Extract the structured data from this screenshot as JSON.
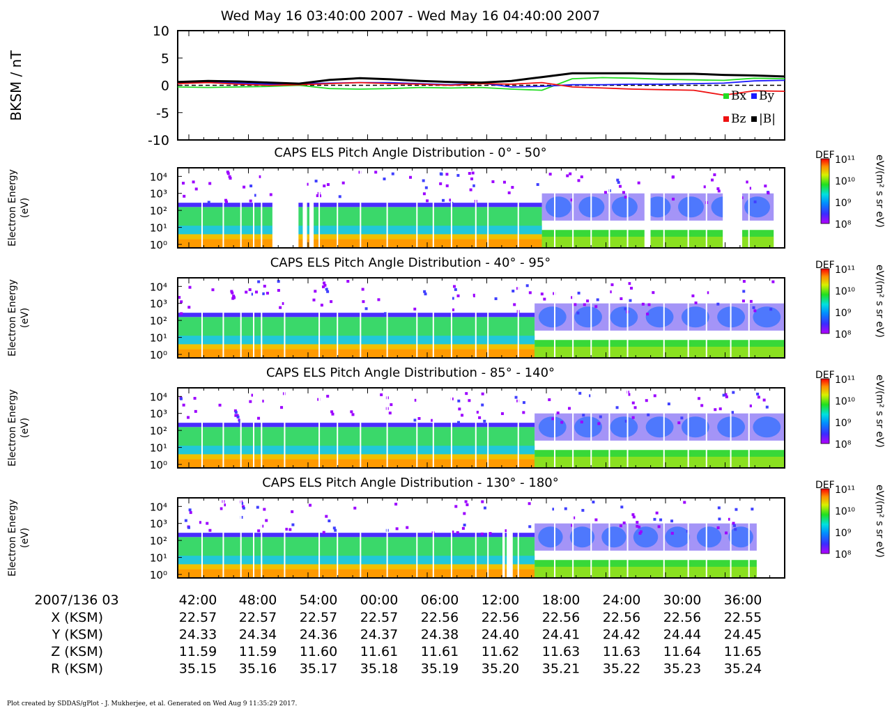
{
  "title": "Wed May 16 03:40:00 2007 - Wed May 16 04:40:00 2007",
  "footer": "Plot created by SDDAS/gPlot - J. Mukherjee, et al.  Generated on Wed Aug 9 11:35:29 2017.",
  "colors": {
    "bx": "#22dd22",
    "by": "#1a1aff",
    "bz": "#ee1111",
    "btot": "#000000"
  },
  "chart_data": [
    {
      "type": "line",
      "ylabel": "BKSM / nT",
      "ylim": [
        -10,
        10
      ],
      "yticks": [
        "10",
        "5",
        "0",
        "-5",
        "-10"
      ],
      "x_unit": "minutes after 03:40",
      "x": [
        0,
        3,
        6,
        9,
        12,
        15,
        18,
        21,
        24,
        27,
        30,
        33,
        36,
        39,
        42,
        45,
        48,
        51,
        54,
        57,
        60
      ],
      "legend": [
        "Bx",
        "By",
        "Bz",
        "|B|"
      ],
      "series": [
        {
          "name": "Bx",
          "color": "#22dd22",
          "values": [
            -0.3,
            -0.4,
            -0.3,
            -0.2,
            0.0,
            -0.6,
            -0.7,
            -0.6,
            -0.4,
            -0.5,
            -0.4,
            -0.7,
            -0.9,
            1.2,
            1.4,
            1.3,
            1.1,
            1.0,
            0.9,
            1.3,
            1.2
          ]
        },
        {
          "name": "By",
          "color": "#1a1aff",
          "values": [
            0.5,
            0.6,
            0.4,
            0.2,
            0.3,
            0.4,
            0.5,
            0.5,
            0.3,
            0.1,
            0.4,
            -0.3,
            -0.2,
            0.1,
            0.1,
            0.2,
            0.2,
            0.3,
            0.4,
            0.8,
            0.9
          ]
        },
        {
          "name": "Bz",
          "color": "#ee1111",
          "values": [
            0.3,
            0.5,
            0.2,
            0.0,
            0.1,
            0.3,
            0.5,
            0.3,
            0.2,
            0.0,
            0.3,
            0.2,
            0.5,
            -0.3,
            -0.5,
            -0.7,
            -0.8,
            -0.9,
            -1.8,
            -1.0,
            -1.1
          ]
        },
        {
          "name": "|B|",
          "color": "#000000",
          "values": [
            0.6,
            0.8,
            0.7,
            0.5,
            0.3,
            1.0,
            1.3,
            1.1,
            0.8,
            0.6,
            0.5,
            0.8,
            1.5,
            2.2,
            2.2,
            2.2,
            2.1,
            2.1,
            1.9,
            1.8,
            1.6
          ]
        }
      ]
    },
    {
      "type": "heatmap",
      "title": "CAPS ELS Pitch Angle Distribution - 0° - 50°",
      "ylabel": [
        "Electron Energy",
        "(eV)"
      ],
      "yticks": [
        "10⁴",
        "10³",
        "10²",
        "10¹",
        "10⁰"
      ],
      "colorbar": {
        "label": "DEF",
        "unit": "eV/(m² s sr eV)",
        "ticks": [
          "10¹¹",
          "10¹⁰",
          "10⁹",
          "10⁸"
        ]
      }
    },
    {
      "type": "heatmap",
      "title": "CAPS ELS Pitch Angle Distribution - 40° - 95°",
      "ylabel": [
        "Electron Energy",
        "(eV)"
      ],
      "yticks": [
        "10⁴",
        "10³",
        "10²",
        "10¹",
        "10⁰"
      ],
      "colorbar": {
        "label": "DEF",
        "unit": "eV/(m² s sr eV)",
        "ticks": [
          "10¹¹",
          "10¹⁰",
          "10⁹",
          "10⁸"
        ]
      }
    },
    {
      "type": "heatmap",
      "title": "CAPS ELS Pitch Angle Distribution - 85° - 140°",
      "ylabel": [
        "Electron Energy",
        "(eV)"
      ],
      "yticks": [
        "10⁴",
        "10³",
        "10²",
        "10¹",
        "10⁰"
      ],
      "colorbar": {
        "label": "DEF",
        "unit": "eV/(m² s sr eV)",
        "ticks": [
          "10¹¹",
          "10¹⁰",
          "10⁹",
          "10⁸"
        ]
      }
    },
    {
      "type": "heatmap",
      "title": "CAPS ELS Pitch Angle Distribution - 130° - 180°",
      "ylabel": [
        "Electron Energy",
        "(eV)"
      ],
      "yticks": [
        "10⁴",
        "10³",
        "10²",
        "10¹",
        "10⁰"
      ],
      "colorbar": {
        "label": "DEF",
        "unit": "eV/(m² s sr eV)",
        "ticks": [
          "10¹¹",
          "10¹⁰",
          "10⁹",
          "10⁸"
        ]
      }
    }
  ],
  "x_axis": {
    "date_label": "2007/136 03",
    "tick_labels": [
      "42:00",
      "48:00",
      "54:00",
      "00:00",
      "06:00",
      "12:00",
      "18:00",
      "24:00",
      "30:00",
      "36:00"
    ],
    "ephemeris": [
      {
        "label": "X (KSM)",
        "values": [
          "22.57",
          "22.57",
          "22.57",
          "22.57",
          "22.56",
          "22.56",
          "22.56",
          "22.56",
          "22.56",
          "22.55"
        ]
      },
      {
        "label": "Y (KSM)",
        "values": [
          "24.33",
          "24.34",
          "24.36",
          "24.37",
          "24.38",
          "24.40",
          "24.41",
          "24.42",
          "24.44",
          "24.45"
        ]
      },
      {
        "label": "Z (KSM)",
        "values": [
          "11.59",
          "11.59",
          "11.60",
          "11.61",
          "11.61",
          "11.62",
          "11.63",
          "11.63",
          "11.64",
          "11.65"
        ]
      },
      {
        "label": "R (KSM)",
        "values": [
          "35.15",
          "35.16",
          "35.17",
          "35.18",
          "35.19",
          "35.20",
          "35.21",
          "35.22",
          "35.23",
          "35.24"
        ]
      }
    ]
  }
}
